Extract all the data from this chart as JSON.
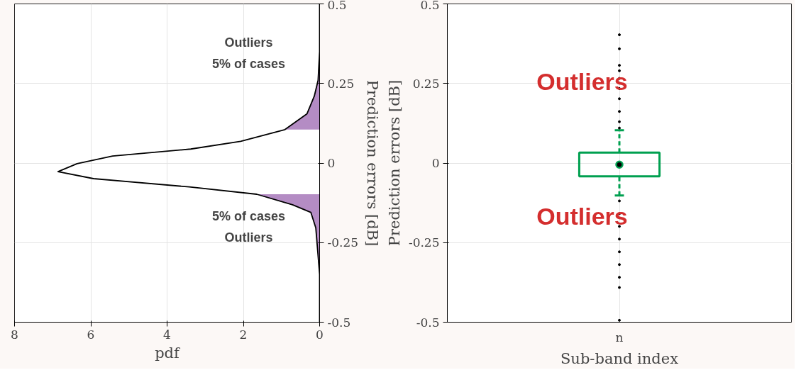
{
  "chart_data": [
    {
      "type": "line",
      "xlabel": "pdf",
      "ylabel": "Prediction errors [dB]",
      "xlim": [
        8,
        0
      ],
      "xticks": [
        8,
        6,
        4,
        2,
        0
      ],
      "ylim": [
        -0.5,
        0.5
      ],
      "yticks": [
        {
          "value": -0.5,
          "label": "-0.5"
        },
        {
          "value": -0.25,
          "label": "-0.25"
        },
        0,
        {
          "value": 0.25,
          "label": "0.25"
        },
        {
          "value": 0.5,
          "label": "0.5"
        }
      ],
      "grid": true,
      "series": [
        {
          "type": "area",
          "color": "#b48cc4",
          "x": [
            0,
            0,
            0.1,
            0.23,
            0.71,
            1.65
          ],
          "values": [
            -0.5,
            -0.35,
            -0.204,
            -0.155,
            -0.131,
            -0.098
          ]
        },
        {
          "type": "area",
          "color": "#b48cc4",
          "x": [
            0.91,
            0.33,
            0.14,
            0.04,
            0,
            0
          ],
          "values": [
            0.105,
            0.155,
            0.21,
            0.26,
            0.35,
            0.5
          ]
        },
        {
          "type": "line",
          "color": "#000000",
          "x": [
            0,
            0,
            0.1,
            0.23,
            0.71,
            1.65,
            3.42,
            5.93,
            6.86,
            6.36,
            5.43,
            3.38,
            2.07,
            0.91,
            0.33,
            0.14,
            0.04,
            0,
            0
          ],
          "values": [
            -0.5,
            -0.35,
            -0.204,
            -0.155,
            -0.131,
            -0.098,
            -0.075,
            -0.049,
            -0.027,
            -0.002,
            0.022,
            0.044,
            0.068,
            0.105,
            0.155,
            0.21,
            0.26,
            0.35,
            0.5
          ]
        }
      ],
      "annotations": [
        "Outliers",
        "5% of cases",
        "5% of cases",
        "Outliers"
      ]
    },
    {
      "type": "box",
      "categories": [
        "n"
      ],
      "xlabel": "Sub-band index",
      "ylabel": "Prediction errors [dB]",
      "ylim": [
        -0.5,
        0.5
      ],
      "yticks": [
        {
          "value": -0.5,
          "label": "-0.5"
        },
        {
          "value": -0.25,
          "label": "-0.25"
        },
        0,
        {
          "value": 0.25,
          "label": "0.25"
        },
        {
          "value": 0.5,
          "label": "0.5"
        }
      ],
      "grid": true,
      "color": "#00a050",
      "boxes": [
        {
          "low": -0.102,
          "q1": -0.042,
          "median": -0.005,
          "q3": 0.033,
          "high": 0.103,
          "outliers": [
            0.403,
            0.359,
            0.307,
            0.29,
            0.266,
            0.234,
            0.202,
            0.162,
            0.13,
            0.11,
            -0.119,
            -0.159,
            -0.199,
            -0.239,
            -0.279,
            -0.319,
            -0.359,
            -0.391,
            -0.494
          ]
        }
      ],
      "annotations": [
        "Outliers",
        "Outliers"
      ]
    }
  ]
}
